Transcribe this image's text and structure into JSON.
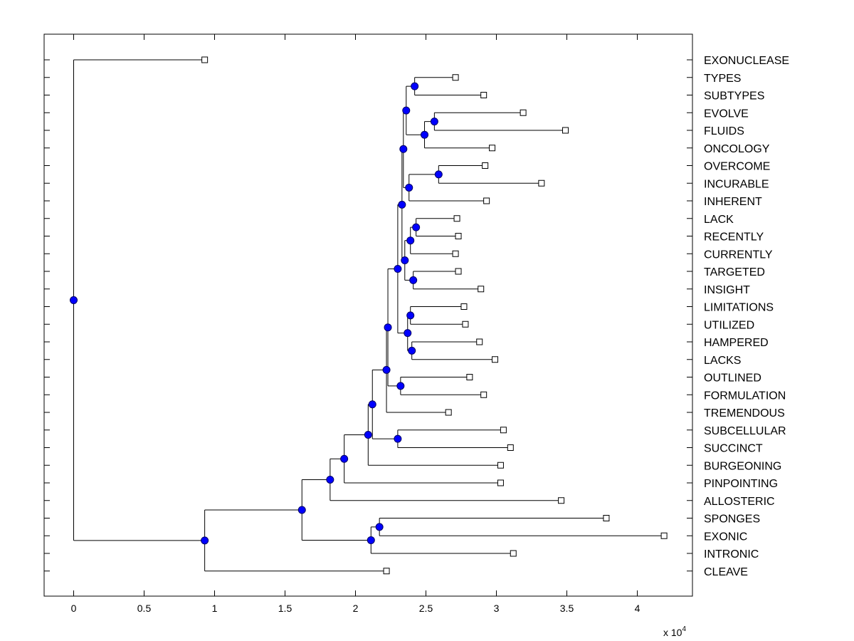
{
  "chart_data": {
    "type": "dendrogram",
    "title": "",
    "xlabel": "",
    "ylabel": "",
    "xlim": [
      -0.2,
      4.4
    ],
    "x_scale_label": "x 10",
    "x_scale_exponent": "4",
    "xticks": [
      0,
      0.5,
      1,
      1.5,
      2,
      2.5,
      3,
      3.5,
      4
    ],
    "xtick_labels": [
      "0",
      "0.5",
      "1",
      "1.5",
      "2",
      "2.5",
      "3",
      "3.5",
      "4"
    ],
    "grid": false,
    "colors": {
      "node_fill": "#0000ff",
      "node_edge": "#000066",
      "line": "#000000",
      "leaf_fill": "#ffffff"
    },
    "leaves": [
      {
        "label": "EXONUCLEASE",
        "value": 0.93
      },
      {
        "label": "TYPES",
        "value": 2.71
      },
      {
        "label": "SUBTYPES",
        "value": 2.91
      },
      {
        "label": "EVOLVE",
        "value": 3.19
      },
      {
        "label": "FLUIDS",
        "value": 3.49
      },
      {
        "label": "ONCOLOGY",
        "value": 2.97
      },
      {
        "label": "OVERCOME",
        "value": 2.92
      },
      {
        "label": "INCURABLE",
        "value": 3.32
      },
      {
        "label": "INHERENT",
        "value": 2.93
      },
      {
        "label": "LACK",
        "value": 2.72
      },
      {
        "label": "RECENTLY",
        "value": 2.73
      },
      {
        "label": "CURRENTLY",
        "value": 2.71
      },
      {
        "label": "TARGETED",
        "value": 2.73
      },
      {
        "label": "INSIGHT",
        "value": 2.89
      },
      {
        "label": "LIMITATIONS",
        "value": 2.77
      },
      {
        "label": "UTILIZED",
        "value": 2.78
      },
      {
        "label": "HAMPERED",
        "value": 2.88
      },
      {
        "label": "LACKS",
        "value": 2.99
      },
      {
        "label": "OUTLINED",
        "value": 2.81
      },
      {
        "label": "FORMULATION",
        "value": 2.91
      },
      {
        "label": "TREMENDOUS",
        "value": 2.66
      },
      {
        "label": "SUBCELLULAR",
        "value": 3.05
      },
      {
        "label": "SUCCINCT",
        "value": 3.1
      },
      {
        "label": "BURGEONING",
        "value": 3.03
      },
      {
        "label": "PINPOINTING",
        "value": 3.03
      },
      {
        "label": "ALLOSTERIC",
        "value": 3.46
      },
      {
        "label": "SPONGES",
        "value": 3.78
      },
      {
        "label": "EXONIC",
        "value": 4.19
      },
      {
        "label": "INTRONIC",
        "value": 3.12
      },
      {
        "label": "CLEAVE",
        "value": 2.22
      }
    ],
    "merges": [
      {
        "id": "m1",
        "value": 2.42,
        "children": [
          "L1",
          "L2"
        ]
      },
      {
        "id": "m2",
        "value": 2.56,
        "children": [
          "L3",
          "L4"
        ]
      },
      {
        "id": "m3",
        "value": 2.49,
        "children": [
          "m2",
          "L5"
        ]
      },
      {
        "id": "m4",
        "value": 2.36,
        "children": [
          "m1",
          "m3"
        ]
      },
      {
        "id": "m5",
        "value": 2.59,
        "children": [
          "L6",
          "L7"
        ]
      },
      {
        "id": "m6",
        "value": 2.38,
        "children": [
          "m5",
          "L8"
        ]
      },
      {
        "id": "m7",
        "value": 2.34,
        "children": [
          "m4",
          "m6"
        ]
      },
      {
        "id": "m8",
        "value": 2.43,
        "children": [
          "L9",
          "L10"
        ]
      },
      {
        "id": "m9",
        "value": 2.39,
        "children": [
          "m8",
          "L11"
        ]
      },
      {
        "id": "m10",
        "value": 2.41,
        "children": [
          "L12",
          "L13"
        ]
      },
      {
        "id": "m11",
        "value": 2.35,
        "children": [
          "m9",
          "m10"
        ]
      },
      {
        "id": "m12",
        "value": 2.33,
        "children": [
          "m7",
          "m11"
        ]
      },
      {
        "id": "m13",
        "value": 2.39,
        "children": [
          "L14",
          "L15"
        ]
      },
      {
        "id": "m14",
        "value": 2.4,
        "children": [
          "L16",
          "L17"
        ]
      },
      {
        "id": "m15",
        "value": 2.37,
        "children": [
          "m13",
          "m14"
        ]
      },
      {
        "id": "m16",
        "value": 2.3,
        "children": [
          "m12",
          "m15"
        ]
      },
      {
        "id": "m17",
        "value": 2.32,
        "children": [
          "L18",
          "L19"
        ]
      },
      {
        "id": "m18",
        "value": 2.23,
        "children": [
          "m16",
          "m17"
        ]
      },
      {
        "id": "m19",
        "value": 2.22,
        "children": [
          "m18",
          "L20"
        ]
      },
      {
        "id": "m20",
        "value": 2.3,
        "children": [
          "L21",
          "L22"
        ]
      },
      {
        "id": "m21",
        "value": 2.12,
        "children": [
          "m19",
          "m20"
        ]
      },
      {
        "id": "m22",
        "value": 2.09,
        "children": [
          "m21",
          "L23"
        ]
      },
      {
        "id": "m23",
        "value": 1.92,
        "children": [
          "m22",
          "L24"
        ]
      },
      {
        "id": "m24",
        "value": 1.82,
        "children": [
          "m23",
          "L25"
        ]
      },
      {
        "id": "m25",
        "value": 2.17,
        "children": [
          "L26",
          "L27"
        ]
      },
      {
        "id": "m26",
        "value": 2.11,
        "children": [
          "m25",
          "L28"
        ]
      },
      {
        "id": "m27",
        "value": 1.62,
        "children": [
          "m24",
          "m26"
        ]
      },
      {
        "id": "m28",
        "value": 0.93,
        "children": [
          "m27",
          "L29"
        ]
      },
      {
        "id": "m29",
        "value": 0.0,
        "children": [
          "L0",
          "m28"
        ]
      }
    ]
  }
}
